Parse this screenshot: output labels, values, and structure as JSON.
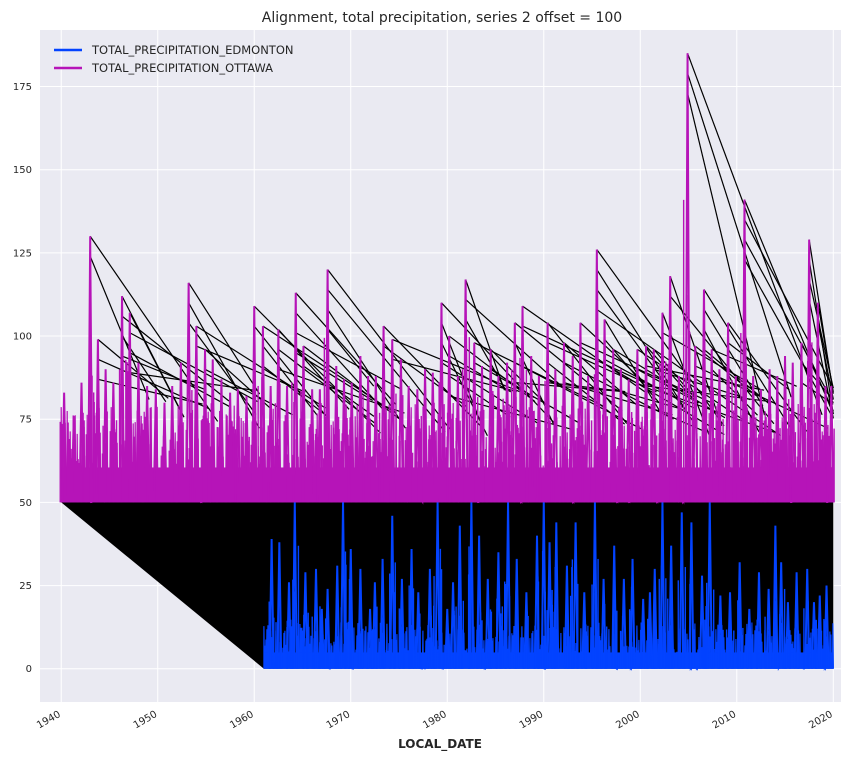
{
  "chart_data": {
    "type": "line",
    "title": "Alignment, total precipitation, series 2 offset = 100",
    "xlabel": "LOCAL_DATE",
    "ylabel": "",
    "xlim": [
      1937.8,
      2020.8
    ],
    "ylim": [
      -10,
      192
    ],
    "xticks": [
      1940,
      1950,
      1960,
      1970,
      1980,
      1990,
      2000,
      2010,
      2020
    ],
    "yticks": [
      0,
      25,
      50,
      75,
      100,
      125,
      150,
      175
    ],
    "grid": true,
    "legend_position": "top-left",
    "colors": {
      "edmonton": "#0343ff",
      "ottawa": "#b614b8",
      "alignment": "#000000",
      "plot_bg": "#eaeaf2",
      "grid": "#ffffff"
    },
    "series": [
      {
        "name": "TOTAL_PRECIPITATION_EDMONTON",
        "x_start": 1961.0,
        "x_end": 2020.0,
        "baseline": 0,
        "peaks": [
          [
            1961.8,
            39
          ],
          [
            1962.6,
            38
          ],
          [
            1963.6,
            26
          ],
          [
            1964.2,
            50
          ],
          [
            1965.3,
            29
          ],
          [
            1966.4,
            30
          ],
          [
            1967.0,
            18
          ],
          [
            1967.6,
            24
          ],
          [
            1968.6,
            31
          ],
          [
            1969.2,
            50
          ],
          [
            1970.0,
            36
          ],
          [
            1971.0,
            30
          ],
          [
            1972.0,
            18
          ],
          [
            1972.5,
            26
          ],
          [
            1973.3,
            33
          ],
          [
            1974.3,
            46
          ],
          [
            1975.3,
            27
          ],
          [
            1976.3,
            36
          ],
          [
            1977.0,
            23
          ],
          [
            1978.2,
            30
          ],
          [
            1979.0,
            50
          ],
          [
            1980.0,
            18
          ],
          [
            1980.6,
            26
          ],
          [
            1981.3,
            43
          ],
          [
            1982.5,
            50
          ],
          [
            1983.3,
            40
          ],
          [
            1984.2,
            27
          ],
          [
            1985.3,
            35
          ],
          [
            1986.3,
            50
          ],
          [
            1987.2,
            33
          ],
          [
            1988.2,
            23
          ],
          [
            1989.3,
            40
          ],
          [
            1990.0,
            50
          ],
          [
            1990.6,
            38
          ],
          [
            1991.3,
            44
          ],
          [
            1992.4,
            31
          ],
          [
            1993.3,
            44
          ],
          [
            1994.2,
            23
          ],
          [
            1995.3,
            50
          ],
          [
            1996.2,
            27
          ],
          [
            1997.3,
            37
          ],
          [
            1998.3,
            27
          ],
          [
            1999.2,
            33
          ],
          [
            2000.3,
            21
          ],
          [
            2001.0,
            23
          ],
          [
            2001.5,
            30
          ],
          [
            2002.3,
            50
          ],
          [
            2003.2,
            37
          ],
          [
            2004.3,
            47
          ],
          [
            2005.3,
            44
          ],
          [
            2006.4,
            28
          ],
          [
            2007.2,
            50
          ],
          [
            2008.3,
            22
          ],
          [
            2009.3,
            23
          ],
          [
            2010.3,
            32
          ],
          [
            2011.3,
            18
          ],
          [
            2012.3,
            29
          ],
          [
            2013.3,
            24
          ],
          [
            2014.0,
            43
          ],
          [
            2014.6,
            32
          ],
          [
            2015.3,
            20
          ],
          [
            2016.2,
            29
          ],
          [
            2017.3,
            30
          ],
          [
            2018.0,
            20
          ],
          [
            2018.6,
            22
          ],
          [
            2019.3,
            25
          ]
        ]
      },
      {
        "name": "TOTAL_PRECIPITATION_OTTAWA",
        "x_start": 1940.0,
        "x_end": 2020.0,
        "baseline": 50,
        "peaks": [
          [
            1940.3,
            83
          ],
          [
            1941.3,
            76
          ],
          [
            1942.1,
            86
          ],
          [
            1943.0,
            130
          ],
          [
            1943.8,
            99
          ],
          [
            1944.6,
            90
          ],
          [
            1945.4,
            86
          ],
          [
            1946.3,
            112
          ],
          [
            1947.1,
            107
          ],
          [
            1948.0,
            92
          ],
          [
            1948.9,
            85
          ],
          [
            1949.8,
            84
          ],
          [
            1950.7,
            80
          ],
          [
            1951.5,
            85
          ],
          [
            1952.4,
            92
          ],
          [
            1953.2,
            116
          ],
          [
            1954.0,
            103
          ],
          [
            1954.9,
            96
          ],
          [
            1955.7,
            93
          ],
          [
            1956.6,
            87
          ],
          [
            1957.5,
            83
          ],
          [
            1958.3,
            84
          ],
          [
            1959.2,
            82
          ],
          [
            1960.0,
            109
          ],
          [
            1960.9,
            103
          ],
          [
            1961.7,
            85
          ],
          [
            1962.5,
            102
          ],
          [
            1963.4,
            85
          ],
          [
            1964.3,
            113
          ],
          [
            1965.1,
            97
          ],
          [
            1966.0,
            84
          ],
          [
            1966.8,
            84
          ],
          [
            1967.6,
            120
          ],
          [
            1968.5,
            91
          ],
          [
            1969.3,
            87
          ],
          [
            1970.1,
            86
          ],
          [
            1971.0,
            94
          ],
          [
            1971.8,
            88
          ],
          [
            1972.6,
            88
          ],
          [
            1973.4,
            103
          ],
          [
            1974.3,
            99
          ],
          [
            1975.2,
            93
          ],
          [
            1976.0,
            85
          ],
          [
            1976.9,
            84
          ],
          [
            1977.7,
            90
          ],
          [
            1978.5,
            89
          ],
          [
            1979.4,
            110
          ],
          [
            1980.2,
            100
          ],
          [
            1981.1,
            88
          ],
          [
            1981.9,
            117
          ],
          [
            1982.8,
            98
          ],
          [
            1983.6,
            91
          ],
          [
            1984.5,
            96
          ],
          [
            1985.3,
            88
          ],
          [
            1986.2,
            92
          ],
          [
            1987.0,
            104
          ],
          [
            1987.8,
            109
          ],
          [
            1988.7,
            94
          ],
          [
            1989.5,
            88
          ],
          [
            1990.4,
            104
          ],
          [
            1991.2,
            90
          ],
          [
            1992.1,
            98
          ],
          [
            1993.0,
            94
          ],
          [
            1993.8,
            104
          ],
          [
            1994.6,
            88
          ],
          [
            1995.5,
            126
          ],
          [
            1996.3,
            105
          ],
          [
            1997.2,
            96
          ],
          [
            1998.0,
            90
          ],
          [
            1998.8,
            87
          ],
          [
            1999.7,
            96
          ],
          [
            2000.6,
            97
          ],
          [
            2001.4,
            96
          ],
          [
            2002.3,
            107
          ],
          [
            2003.1,
            118
          ],
          [
            2004.0,
            88
          ],
          [
            2004.9,
            185
          ],
          [
            2005.7,
            97
          ],
          [
            2006.6,
            114
          ],
          [
            2007.4,
            96
          ],
          [
            2008.2,
            90
          ],
          [
            2009.1,
            104
          ],
          [
            2009.9,
            88
          ],
          [
            2010.8,
            141
          ],
          [
            2011.7,
            88
          ],
          [
            2012.5,
            84
          ],
          [
            2013.4,
            90
          ],
          [
            2014.2,
            88
          ],
          [
            2015.0,
            94
          ],
          [
            2015.8,
            92
          ],
          [
            2016.7,
            98
          ],
          [
            2017.5,
            129
          ],
          [
            2018.4,
            110
          ],
          [
            2019.2,
            85
          ],
          [
            2019.8,
            85
          ]
        ]
      }
    ]
  }
}
